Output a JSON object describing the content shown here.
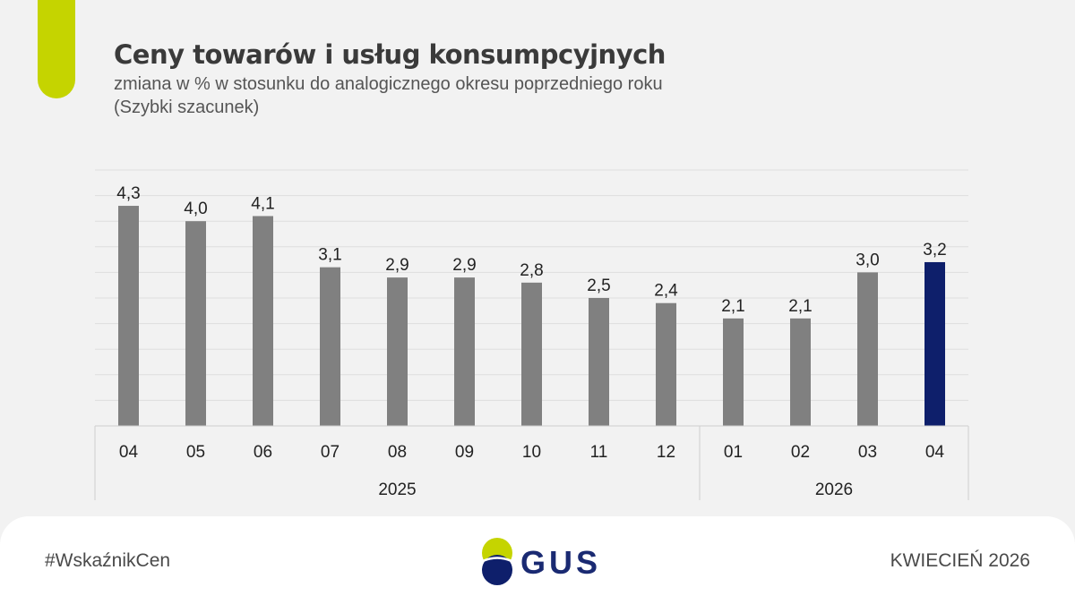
{
  "chart_data": {
    "type": "bar",
    "title": "Ceny towarów i usług konsumpcyjnych",
    "subtitle_line1": "zmiana w % w stosunku do analogicznego okresu poprzedniego roku",
    "subtitle_line2": "(Szybki szacunek)",
    "categories": [
      "04",
      "05",
      "06",
      "07",
      "08",
      "09",
      "10",
      "11",
      "12",
      "01",
      "02",
      "03",
      "04"
    ],
    "values": [
      4.3,
      4.0,
      4.1,
      3.1,
      2.9,
      2.9,
      2.8,
      2.5,
      2.4,
      2.1,
      2.1,
      3.0,
      3.2
    ],
    "value_labels": [
      "4,3",
      "4,0",
      "4,1",
      "3,1",
      "2,9",
      "2,9",
      "2,8",
      "2,5",
      "2,4",
      "2,1",
      "2,1",
      "3,0",
      "3,2"
    ],
    "groups": [
      {
        "label": "2025",
        "count": 9
      },
      {
        "label": "2026",
        "count": 4
      }
    ],
    "highlight_index": 12,
    "ylim": [
      0,
      5
    ],
    "grid": true,
    "colors": {
      "bar": "#808080",
      "highlight": "#0e1f6b",
      "grid": "#dedede"
    }
  },
  "footer": {
    "hashtag": "#WskaźnikCen",
    "logo_text": "GUS",
    "date": "KWIECIEŃ 2026"
  },
  "logo_colors": {
    "top": "#c5d400",
    "bottom": "#0e1f6b"
  }
}
